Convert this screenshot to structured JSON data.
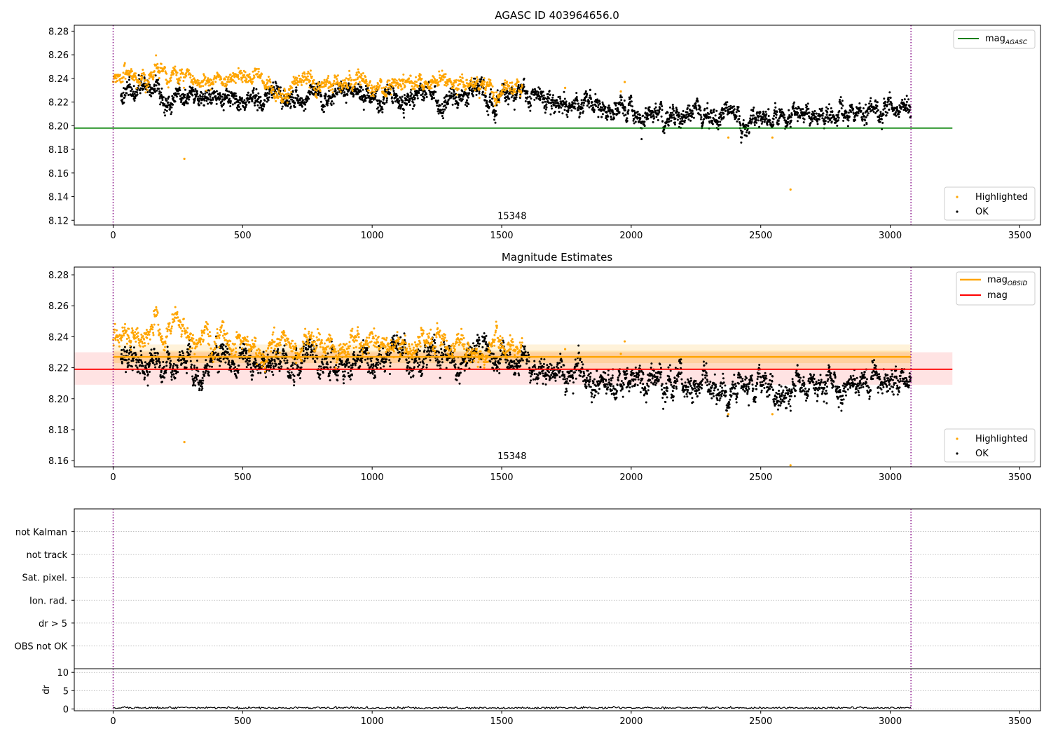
{
  "chart_data": [
    {
      "type": "scatter",
      "title": "AGASC ID 403964656.0",
      "xlim": [
        -150,
        3580
      ],
      "ylim": [
        8.116,
        8.285
      ],
      "xticks": [
        0,
        500,
        1000,
        1500,
        2000,
        2500,
        3000,
        3500
      ],
      "yticks": [
        8.12,
        8.14,
        8.16,
        8.18,
        8.2,
        8.22,
        8.24,
        8.26,
        8.28
      ],
      "y_decimals": 2,
      "hlines": [
        {
          "name": "mag",
          "subscript": "AGASC",
          "y": 8.198,
          "x_range": [
            -150,
            3240
          ],
          "color": "#008000"
        }
      ],
      "vlines": [
        {
          "x": 0,
          "color": "#800080"
        },
        {
          "x": 3080,
          "color": "#800080"
        }
      ],
      "annotation": {
        "text": "15348",
        "x": 1540,
        "y": 8.121
      },
      "legend_top": {
        "position": "top-right",
        "entries": [
          {
            "name": "mag",
            "subscript": "AGASC",
            "color": "#008000"
          }
        ]
      },
      "legend_bottom": {
        "position": "bottom-right",
        "entries": [
          {
            "name": "Highlighted",
            "color": "#ffa500"
          },
          {
            "name": "OK",
            "color": "#000000"
          }
        ]
      },
      "series": [
        {
          "name": "OK",
          "color": "#000000",
          "x_range": [
            30,
            3080
          ],
          "trend": [
            [
              30,
              8.225
            ],
            [
              1500,
              8.225
            ],
            [
              1800,
              8.213
            ],
            [
              2300,
              8.208
            ],
            [
              2600,
              8.205
            ],
            [
              3080,
              8.212
            ]
          ],
          "spread": 0.006
        },
        {
          "name": "Highlighted",
          "color": "#ffa500",
          "x_range": [
            0,
            1580
          ],
          "trend": [
            [
              0,
              8.238
            ],
            [
              200,
              8.243
            ],
            [
              600,
              8.233
            ],
            [
              900,
              8.236
            ],
            [
              1580,
              8.232
            ]
          ],
          "spread": 0.005
        },
        {
          "name": "Highlighted",
          "color": "#ffa500",
          "points": [
            [
              275,
              8.172
            ],
            [
              2615,
              8.146
            ],
            [
              2375,
              8.19
            ],
            [
              2545,
              8.19
            ],
            [
              1960,
              8.229
            ],
            [
              1975,
              8.237
            ],
            [
              1745,
              8.232
            ]
          ]
        }
      ]
    },
    {
      "type": "scatter",
      "title": "Magnitude Estimates",
      "xlim": [
        -150,
        3580
      ],
      "ylim": [
        8.156,
        8.285
      ],
      "xticks": [
        0,
        500,
        1000,
        1500,
        2000,
        2500,
        3000,
        3500
      ],
      "yticks": [
        8.16,
        8.18,
        8.2,
        8.22,
        8.24,
        8.26,
        8.28
      ],
      "y_decimals": 2,
      "bands": [
        {
          "y_range": [
            8.209,
            8.23
          ],
          "x_range": [
            -150,
            3240
          ],
          "color": "#ff0000",
          "opacity": 0.11
        },
        {
          "y_range": [
            8.219,
            8.235
          ],
          "x_range": [
            0,
            3080
          ],
          "color": "#ffa500",
          "opacity": 0.15
        },
        {
          "y_range": [
            8.223,
            8.231
          ],
          "x_range": [
            0,
            3080
          ],
          "color": "#ffa500",
          "opacity": 0.18
        }
      ],
      "hlines": [
        {
          "name": "mag",
          "subscript": "OBSID",
          "y": 8.227,
          "x_range": [
            0,
            3080
          ],
          "color": "#ffa500",
          "width": 2.5
        },
        {
          "name": "mag",
          "y": 8.219,
          "x_range": [
            -150,
            3240
          ],
          "color": "#ff0000",
          "width": 1.8
        }
      ],
      "vlines": [
        {
          "x": 0,
          "color": "#800080"
        },
        {
          "x": 3080,
          "color": "#800080"
        }
      ],
      "annotation": {
        "text": "15348",
        "x": 1540,
        "y": 8.161
      },
      "legend_top": {
        "position": "top-right",
        "entries": [
          {
            "name": "mag",
            "subscript": "OBSID",
            "color": "#ffa500"
          },
          {
            "name": "mag",
            "color": "#ff0000"
          }
        ]
      },
      "legend_bottom": {
        "position": "bottom-right",
        "entries": [
          {
            "name": "Highlighted",
            "color": "#ffa500"
          },
          {
            "name": "OK",
            "color": "#000000"
          }
        ]
      },
      "series": [
        {
          "name": "OK",
          "color": "#000000",
          "x_range": [
            30,
            3080
          ],
          "trend": [
            [
              30,
              8.225
            ],
            [
              1500,
              8.225
            ],
            [
              1800,
              8.213
            ],
            [
              2300,
              8.208
            ],
            [
              2600,
              8.205
            ],
            [
              3080,
              8.212
            ]
          ],
          "spread": 0.006
        },
        {
          "name": "Highlighted",
          "color": "#ffa500",
          "x_range": [
            0,
            1580
          ],
          "trend": [
            [
              0,
              8.238
            ],
            [
              200,
              8.243
            ],
            [
              600,
              8.233
            ],
            [
              900,
              8.236
            ],
            [
              1580,
              8.232
            ]
          ],
          "spread": 0.005
        },
        {
          "name": "Highlighted",
          "color": "#ffa500",
          "points": [
            [
              275,
              8.172
            ],
            [
              2615,
              8.157
            ],
            [
              2375,
              8.19
            ],
            [
              2545,
              8.19
            ],
            [
              1960,
              8.229
            ],
            [
              1975,
              8.237
            ],
            [
              1745,
              8.232
            ]
          ]
        }
      ]
    },
    {
      "type": "scatter",
      "xlim": [
        -150,
        3580
      ],
      "ylim": [
        0,
        7
      ],
      "categories": [
        "not Kalman",
        "not track",
        "Sat. pixel.",
        "Ion. rad.",
        "dr > 5",
        "OBS not OK"
      ],
      "category_y": [
        6,
        5,
        4,
        3,
        2,
        1
      ],
      "grid": "horizontal",
      "vlines": [
        {
          "x": 0,
          "color": "#800080"
        },
        {
          "x": 3080,
          "color": "#800080"
        }
      ]
    },
    {
      "type": "line",
      "xlim": [
        -150,
        3580
      ],
      "ylim": [
        -0.5,
        11
      ],
      "ylabel": "dr",
      "xticks": [
        0,
        500,
        1000,
        1500,
        2000,
        2500,
        3000,
        3500
      ],
      "yticks": [
        0,
        5,
        10
      ],
      "y_decimals": 0,
      "grid": "horizontal",
      "vlines": [
        {
          "x": 0,
          "color": "#800080"
        },
        {
          "x": 3080,
          "color": "#800080"
        }
      ],
      "series": [
        {
          "name": "dr",
          "color": "#000000",
          "x_range": [
            0,
            3080
          ],
          "trend": [
            [
              0,
              0.3
            ],
            [
              3080,
              0.3
            ]
          ],
          "spread": 0.15
        }
      ]
    }
  ]
}
